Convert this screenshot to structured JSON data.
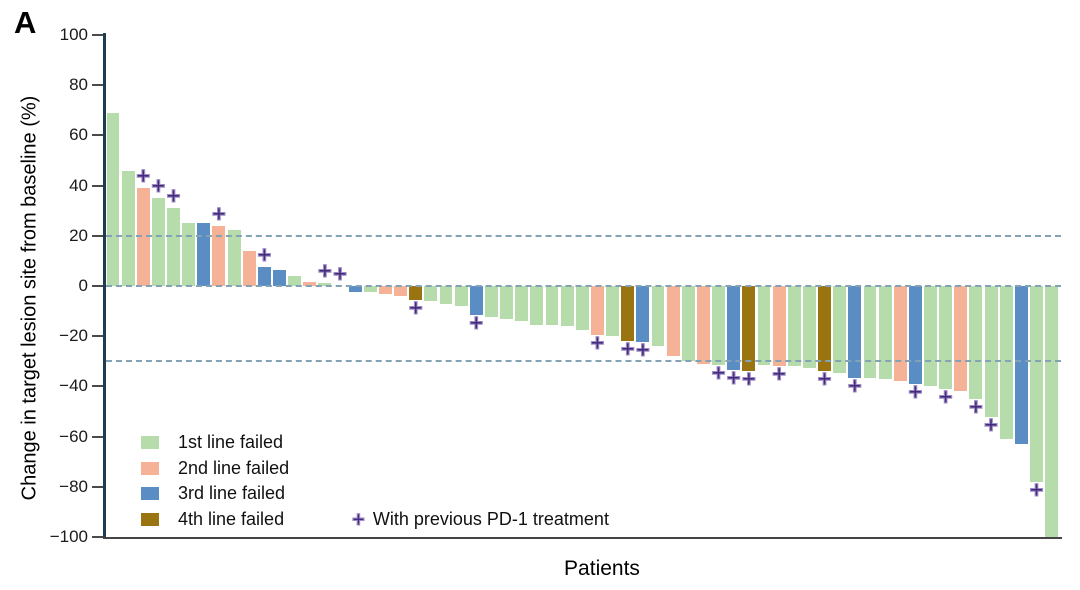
{
  "panel_label": "A",
  "axes": {
    "y_title": "Change in target lesion site from baseline (%)",
    "x_title": "Patients",
    "y_ticks": [
      {
        "label": "100",
        "value": 100
      },
      {
        "label": "80",
        "value": 80
      },
      {
        "label": "60",
        "value": 60
      },
      {
        "label": "40",
        "value": 40
      },
      {
        "label": "20",
        "value": 20
      },
      {
        "label": "0",
        "value": 0
      },
      {
        "label": "−20",
        "value": -20
      },
      {
        "label": "−40",
        "value": -40
      },
      {
        "label": "−60",
        "value": -60
      },
      {
        "label": "−80",
        "value": -80
      },
      {
        "label": "−100",
        "value": -100
      }
    ]
  },
  "reference_lines": {
    "values": [
      20,
      0,
      -30
    ],
    "color": "#84a2b6"
  },
  "legend": {
    "items": [
      {
        "label": "1st line failed",
        "color": "#b7dcab",
        "line": 1
      },
      {
        "label": "2nd line failed",
        "color": "#f6b297",
        "line": 2
      },
      {
        "label": "3rd line failed",
        "color": "#5b8dc5",
        "line": 3
      },
      {
        "label": "4th line failed",
        "color": "#9a7410",
        "line": 4
      }
    ],
    "marker": {
      "symbol": "+",
      "label": "With previous PD-1 treatment",
      "color": "#432a7e"
    }
  },
  "chart_data": {
    "type": "bar",
    "title": "",
    "xlabel": "Patients",
    "ylabel": "Change in target lesion site from baseline (%)",
    "ylim": [
      -100,
      100
    ],
    "grid": false,
    "legend_position": "lower-left",
    "reference_lines": [
      20,
      0,
      -30
    ],
    "row_format": [
      "change_from_baseline_pct",
      "line_failed",
      "previous_pd1_treatment"
    ],
    "patients": [
      [
        69,
        1,
        false
      ],
      [
        46,
        1,
        false
      ],
      [
        39,
        2,
        true
      ],
      [
        35,
        1,
        true
      ],
      [
        31,
        1,
        true
      ],
      [
        25,
        1,
        false
      ],
      [
        25,
        3,
        false
      ],
      [
        24,
        2,
        true
      ],
      [
        22.5,
        1,
        false
      ],
      [
        14,
        2,
        false
      ],
      [
        7.5,
        3,
        true
      ],
      [
        6.5,
        3,
        false
      ],
      [
        4,
        1,
        false
      ],
      [
        1.5,
        2,
        false
      ],
      [
        1,
        1,
        true
      ],
      [
        0,
        1,
        true
      ],
      [
        -2.5,
        3,
        false
      ],
      [
        -2.5,
        1,
        false
      ],
      [
        -3,
        2,
        false
      ],
      [
        -4,
        2,
        false
      ],
      [
        -5.5,
        4,
        true
      ],
      [
        -6,
        1,
        false
      ],
      [
        -7,
        1,
        false
      ],
      [
        -8,
        1,
        false
      ],
      [
        -11.5,
        3,
        true
      ],
      [
        -12.5,
        1,
        false
      ],
      [
        -13,
        1,
        false
      ],
      [
        -14,
        1,
        false
      ],
      [
        -15.5,
        1,
        false
      ],
      [
        -15.5,
        1,
        false
      ],
      [
        -16,
        1,
        false
      ],
      [
        -17.5,
        1,
        false
      ],
      [
        -19.5,
        2,
        true
      ],
      [
        -20,
        1,
        false
      ],
      [
        -22,
        4,
        true
      ],
      [
        -22.5,
        3,
        true
      ],
      [
        -24,
        1,
        false
      ],
      [
        -28,
        2,
        false
      ],
      [
        -30,
        1,
        false
      ],
      [
        -31,
        2,
        false
      ],
      [
        -31.5,
        1,
        true
      ],
      [
        -33.5,
        3,
        true
      ],
      [
        -34,
        4,
        true
      ],
      [
        -31.5,
        1,
        false
      ],
      [
        -32,
        2,
        true
      ],
      [
        -32,
        1,
        false
      ],
      [
        -32.5,
        1,
        false
      ],
      [
        -34,
        4,
        true
      ],
      [
        -34.5,
        1,
        false
      ],
      [
        -36.5,
        3,
        true
      ],
      [
        -36.5,
        1,
        false
      ],
      [
        -37,
        1,
        false
      ],
      [
        -38,
        2,
        false
      ],
      [
        -39,
        3,
        true
      ],
      [
        -40,
        1,
        false
      ],
      [
        -41,
        1,
        true
      ],
      [
        -42,
        2,
        false
      ],
      [
        -45,
        1,
        true
      ],
      [
        -52,
        1,
        true
      ],
      [
        -61,
        1,
        false
      ],
      [
        -63,
        3,
        false
      ],
      [
        -78,
        1,
        true
      ],
      [
        -100,
        1,
        false
      ]
    ]
  },
  "colors": {
    "axis_left": "#1e3d52",
    "axis_bottom": "#454545",
    "tick": "#4a4a4a",
    "text": "#111111",
    "background": "#ffffff"
  }
}
